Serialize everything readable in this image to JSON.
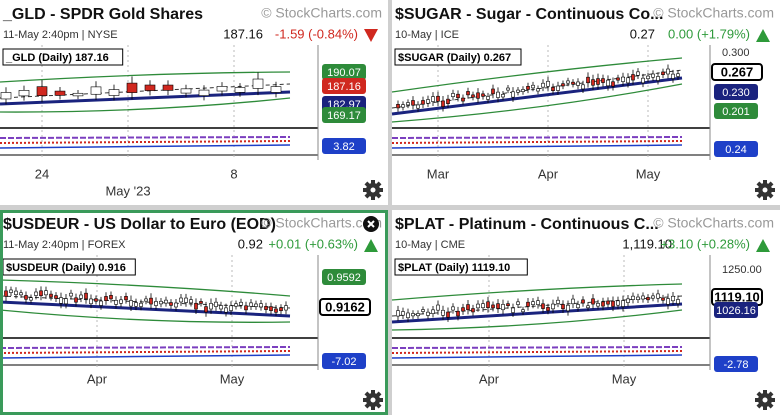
{
  "panels": [
    {
      "title": "_GLD - SPDR Gold Shares",
      "watermark": "© StockCharts.com",
      "date": "11-May 2:40pm",
      "exchange": "NYSE",
      "price": "187.16",
      "change": "-1.59 (-0.84%)",
      "direction": "down",
      "legend": "_GLD (Daily) 187.16",
      "axis_top": null,
      "badges": [
        {
          "text": "190.07",
          "color": "#2e8b3a"
        },
        {
          "text": "187.16",
          "color": "#d0281f"
        },
        {
          "text": "182.97",
          "color": "#1a237e"
        },
        {
          "text": "169.17",
          "color": "#2e8b3a"
        },
        {
          "text": "3.82",
          "color": "#1e40c8"
        }
      ],
      "x_labels": [
        "24",
        "May '23",
        "8"
      ]
    },
    {
      "title": "$SUGAR - Sugar - Continuous Co...",
      "watermark": "© StockCharts.com",
      "date": "10-May",
      "exchange": "ICE",
      "price": "0.27",
      "change": "0.00 (+1.79%)",
      "direction": "up",
      "legend": "$SUGAR (Daily) 0.267",
      "axis_top": "0.300",
      "badges": [
        {
          "text": "0.267",
          "color": "#ffffff"
        },
        {
          "text": "0.230",
          "color": "#1a237e"
        },
        {
          "text": "0.201",
          "color": "#2e8b3a"
        },
        {
          "text": "0.24",
          "color": "#1e40c8"
        }
      ],
      "x_labels": [
        "Mar",
        "Apr",
        "May"
      ]
    },
    {
      "title": "$USDEUR - US Dollar to Euro (EOD)",
      "watermark": "© StockCharts.com",
      "date": "11-May 2:40pm",
      "exchange": "FOREX",
      "price": "0.92",
      "change": "+0.01 (+0.63%)",
      "direction": "up",
      "legend": "$USDEUR (Daily) 0.916",
      "axis_top": null,
      "badges": [
        {
          "text": "0.9592",
          "color": "#2e8b3a"
        },
        {
          "text": "0.9162",
          "color": "#ffffff"
        },
        {
          "text": "-7.02",
          "color": "#1e40c8"
        }
      ],
      "x_labels": [
        "Apr",
        "May"
      ]
    },
    {
      "title": "$PLAT - Platinum - Continuous C...",
      "watermark": "© StockCharts.com",
      "date": "10-May",
      "exchange": "CME",
      "price": "1,119.10",
      "change": "+3.10 (+0.28%)",
      "direction": "up",
      "legend": "$PLAT (Daily) 1119.10",
      "axis_top": "1250.00",
      "badges": [
        {
          "text": "1119.10",
          "color": "#ffffff"
        },
        {
          "text": "1026.16",
          "color": "#1a237e"
        },
        {
          "text": "-2.78",
          "color": "#1e40c8"
        }
      ],
      "x_labels": [
        "Apr",
        "May"
      ]
    }
  ]
}
